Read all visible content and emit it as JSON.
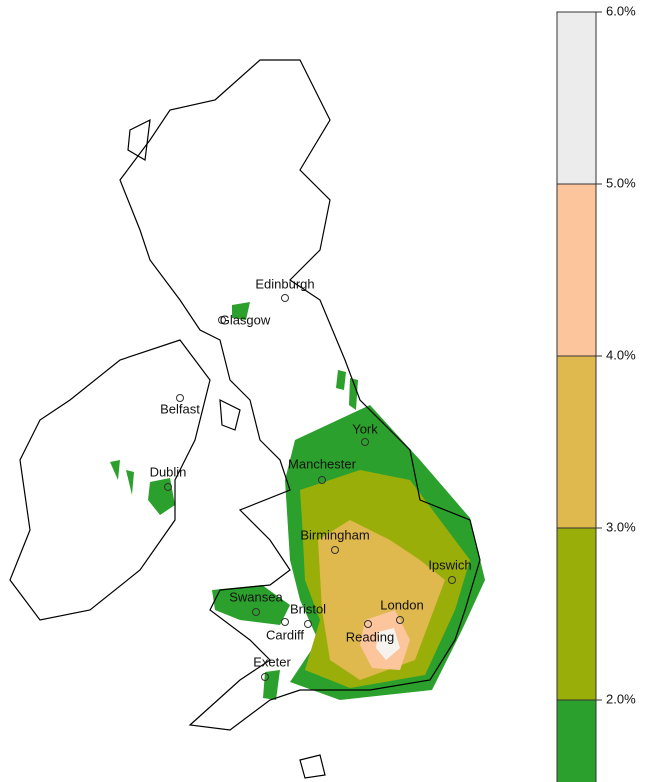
{
  "cities": [
    "Edinburgh",
    "Glasgow",
    "Belfast",
    "York",
    "Manchester",
    "Dublin",
    "Birmingham",
    "Ipswich",
    "Swansea",
    "Bristol",
    "London",
    "Cardiff",
    "Reading",
    "Exeter"
  ],
  "legend": {
    "lim": [
      1.5,
      6
    ],
    "ticks": [
      {
        "value": 2,
        "label": "2.0%"
      },
      {
        "value": 3,
        "label": "3.0%"
      },
      {
        "value": 4,
        "label": "4.0%"
      },
      {
        "value": 5,
        "label": "5.0%"
      },
      {
        "value": 6,
        "label": "6.0%"
      }
    ],
    "bins": [
      {
        "from": 1.5,
        "to": 2,
        "color": "#2ca02c"
      },
      {
        "from": 2,
        "to": 3,
        "color": "#9aae0a"
      },
      {
        "from": 3,
        "to": 4,
        "color": "#dfb84e"
      },
      {
        "from": 4,
        "to": 5,
        "color": "#fdc59c"
      },
      {
        "from": 5,
        "to": 6,
        "color": "#ececec"
      }
    ]
  }
}
